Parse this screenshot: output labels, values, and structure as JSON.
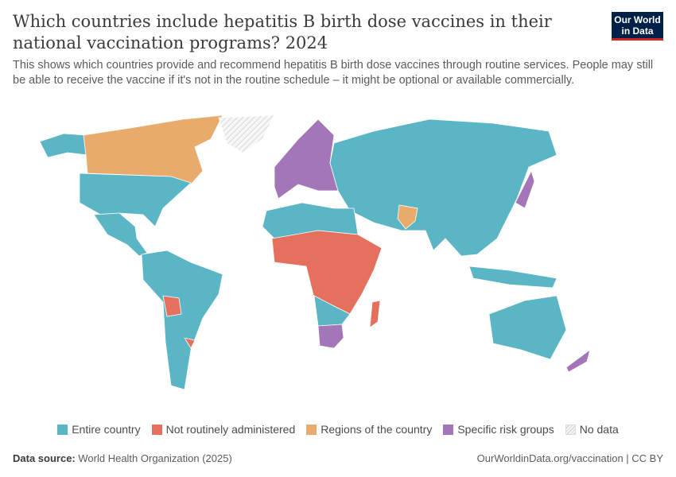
{
  "header": {
    "title": "Which countries include hepatitis B birth dose vaccines in their national vaccination programs? 2024",
    "subtitle": "This shows which countries provide and recommend hepatitis B birth dose vaccines through routine services. People may still be able to receive the vaccine if it's not in the routine schedule – it might be optional or available commercially.",
    "logo": "Our World in Data"
  },
  "legend": [
    {
      "key": "entire",
      "label": "Entire country",
      "color": "#5ab5c5"
    },
    {
      "key": "not",
      "label": "Not routinely administered",
      "color": "#e5705d"
    },
    {
      "key": "regions",
      "label": "Regions of the country",
      "color": "#e8ab6b"
    },
    {
      "key": "risk",
      "label": "Specific risk groups",
      "color": "#a276b8"
    },
    {
      "key": "nodata",
      "label": "No data",
      "color": "#f0f0f0"
    }
  ],
  "map_regions": [
    {
      "name": "Alaska (United States)",
      "category": "entire"
    },
    {
      "name": "Canada",
      "category": "regions"
    },
    {
      "name": "United States",
      "category": "entire"
    },
    {
      "name": "Mexico & Central America",
      "category": "entire"
    },
    {
      "name": "Greenland",
      "category": "nodata"
    },
    {
      "name": "South America",
      "category": "entire"
    },
    {
      "name": "Bolivia",
      "category": "not"
    },
    {
      "name": "Uruguay",
      "category": "not"
    },
    {
      "name": "Western Europe",
      "category": "risk"
    },
    {
      "name": "Russia & Asia",
      "category": "entire"
    },
    {
      "name": "North Africa",
      "category": "entire"
    },
    {
      "name": "Sub-Saharan Africa",
      "category": "not"
    },
    {
      "name": "Southern central Africa",
      "category": "entire"
    },
    {
      "name": "South Africa",
      "category": "risk"
    },
    {
      "name": "Madagascar",
      "category": "not"
    },
    {
      "name": "Pakistan",
      "category": "regions"
    },
    {
      "name": "Japan",
      "category": "risk"
    },
    {
      "name": "Indonesia",
      "category": "entire"
    },
    {
      "name": "Australia",
      "category": "entire"
    },
    {
      "name": "New Zealand",
      "category": "risk"
    }
  ],
  "footer": {
    "source_label": "Data source:",
    "source": "World Health Organization (2025)",
    "credit": "OurWorldinData.org/vaccination | CC BY"
  }
}
